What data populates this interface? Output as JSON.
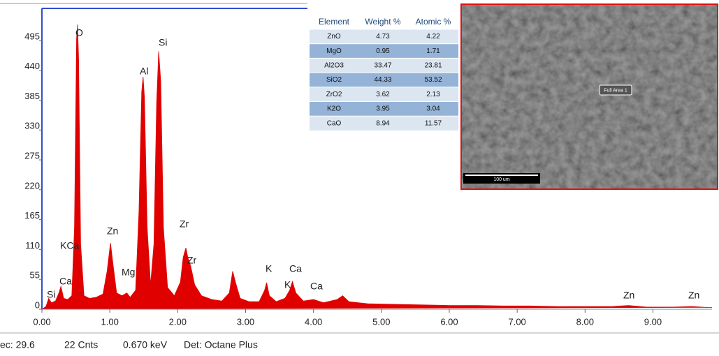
{
  "chart_data": {
    "type": "area",
    "color": "#e00000",
    "x": [
      0.0,
      0.06,
      0.1,
      0.14,
      0.2,
      0.25,
      0.28,
      0.32,
      0.38,
      0.44,
      0.48,
      0.51,
      0.525,
      0.54,
      0.57,
      0.62,
      0.7,
      0.8,
      0.9,
      0.96,
      1.01,
      1.05,
      1.1,
      1.18,
      1.25,
      1.3,
      1.38,
      1.43,
      1.47,
      1.49,
      1.51,
      1.55,
      1.6,
      1.65,
      1.69,
      1.72,
      1.75,
      1.79,
      1.85,
      1.95,
      2.04,
      2.08,
      2.12,
      2.15,
      2.19,
      2.25,
      2.35,
      2.5,
      2.65,
      2.76,
      2.81,
      2.85,
      2.92,
      3.05,
      3.2,
      3.28,
      3.31,
      3.35,
      3.45,
      3.58,
      3.65,
      3.69,
      3.74,
      3.85,
      4.0,
      4.15,
      4.35,
      4.43,
      4.52,
      4.8,
      5.2,
      5.6,
      6.0,
      6.4,
      6.8,
      7.2,
      7.6,
      8.0,
      8.4,
      8.64,
      8.9,
      9.3,
      9.57,
      9.87
    ],
    "values": [
      0,
      5,
      20,
      12,
      15,
      30,
      42,
      20,
      18,
      25,
      150,
      500,
      524,
      460,
      120,
      25,
      20,
      22,
      28,
      70,
      122,
      80,
      30,
      25,
      30,
      22,
      35,
      180,
      400,
      428,
      390,
      150,
      45,
      120,
      380,
      475,
      420,
      150,
      40,
      25,
      50,
      95,
      113,
      95,
      80,
      45,
      25,
      18,
      15,
      30,
      70,
      50,
      20,
      14,
      14,
      35,
      49,
      25,
      14,
      20,
      35,
      51,
      30,
      15,
      18,
      12,
      18,
      25,
      14,
      10,
      9,
      8,
      7,
      7,
      6,
      6,
      5,
      5,
      5,
      7,
      4,
      4,
      5,
      3
    ],
    "xlim": [
      0,
      9.87
    ],
    "ylim": [
      0,
      554
    ],
    "xticks": [
      {
        "value": 0,
        "label": "0.00"
      },
      {
        "value": 1,
        "label": "1.00"
      },
      {
        "value": 2,
        "label": "2.00"
      },
      {
        "value": 3,
        "label": "3.00"
      },
      {
        "value": 4,
        "label": "4.00"
      },
      {
        "value": 5,
        "label": "5.00"
      },
      {
        "value": 6,
        "label": "6.00"
      },
      {
        "value": 7,
        "label": "7.00"
      },
      {
        "value": 8,
        "label": "8.00"
      },
      {
        "value": 9,
        "label": "9.00"
      }
    ],
    "yticks": [
      0,
      55,
      110,
      165,
      220,
      275,
      330,
      385,
      440,
      495
    ],
    "annotations": [
      "Si",
      "Ca",
      "KCa",
      "O",
      "Zn",
      "Mg",
      "Al",
      "Si",
      "Zr",
      "Zr",
      "K",
      "Ca",
      "K",
      "Ca",
      "Zn",
      "Zn"
    ]
  },
  "table": {
    "columns": [
      "Element",
      "Weight %",
      "Atomic %"
    ],
    "rows": [
      [
        "ZnO",
        4.73,
        4.22
      ],
      [
        "MgO",
        0.95,
        1.71
      ],
      [
        "Al2O3",
        33.47,
        23.81
      ],
      [
        "SiO2",
        44.33,
        53.52
      ],
      [
        "ZrO2",
        3.62,
        2.13
      ],
      [
        "K2O",
        3.95,
        3.04
      ],
      [
        "CaO",
        8.94,
        11.57
      ]
    ]
  },
  "sem_image": {
    "label": "Full Area 1",
    "scale_bar": "100 um"
  },
  "status_bar": [
    "ec: 29.6",
    "22 Cnts",
    "0.670 keV",
    "Det: Octane Plus"
  ]
}
